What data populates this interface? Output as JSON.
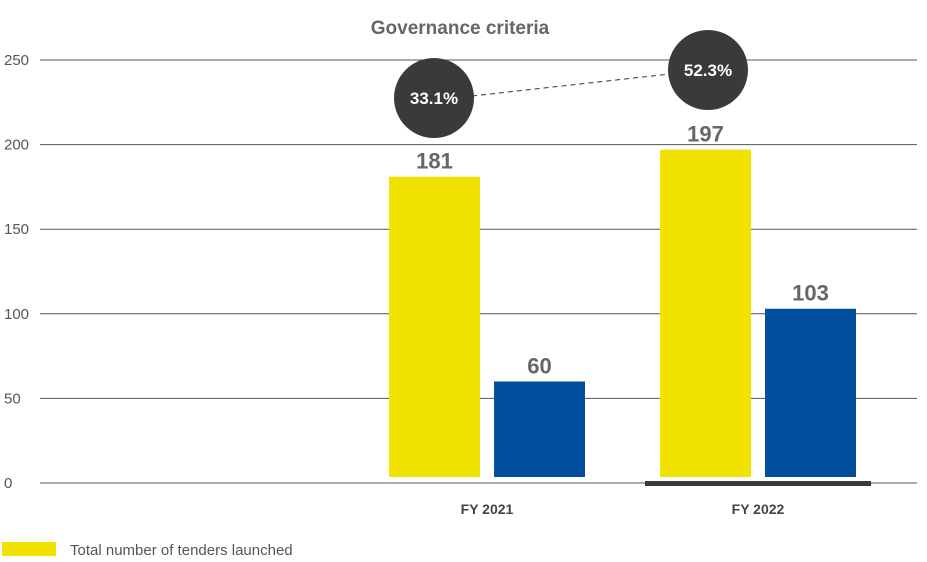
{
  "chart_data": {
    "type": "bar",
    "title": "Governance criteria",
    "categories": [
      "FY 2021",
      "FY 2022"
    ],
    "series": [
      {
        "name": "Total number of tenders launched",
        "values": [
          181,
          197
        ],
        "color": "#f2e200"
      },
      {
        "values": [
          60,
          103
        ],
        "color": "#00509e"
      }
    ],
    "ylim": [
      0,
      250
    ],
    "yticks": [
      0,
      50,
      100,
      150,
      200,
      250
    ],
    "ratio_labels": [
      "33.1%",
      "52.3%"
    ],
    "ratio_color": "#3a3a3a",
    "grid": true,
    "legend": "bottom-left"
  }
}
